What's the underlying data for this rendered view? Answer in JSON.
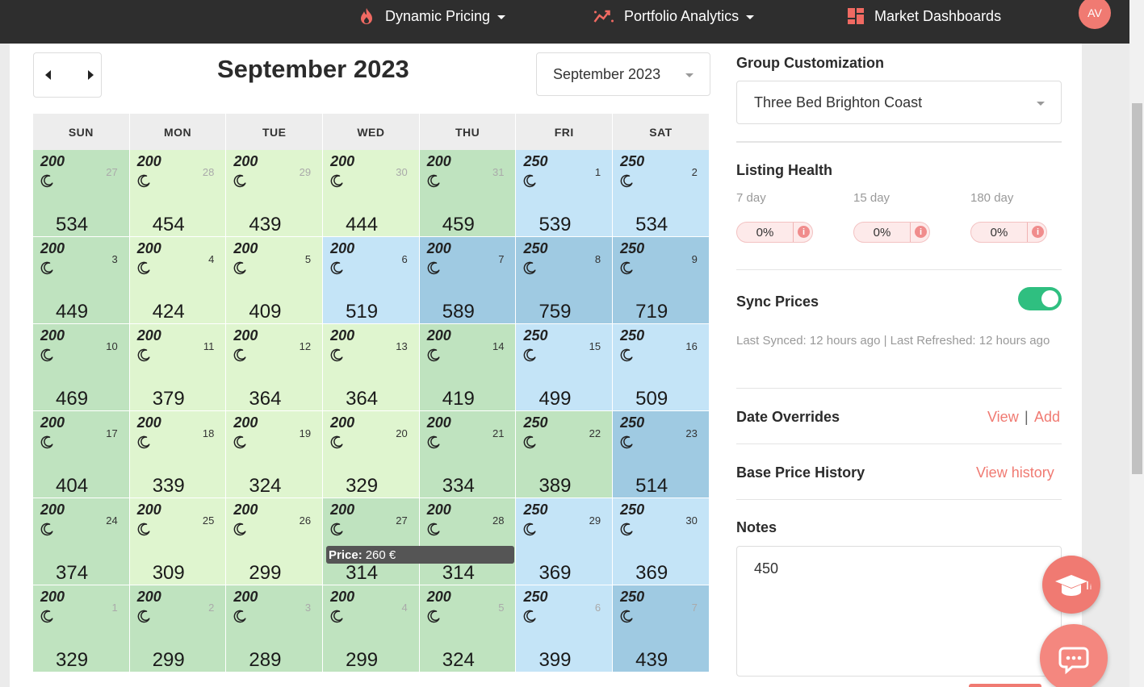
{
  "nav": {
    "items": [
      {
        "label": "Dynamic Pricing",
        "icon": "flame-icon",
        "dropdown": true
      },
      {
        "label": "Portfolio Analytics",
        "icon": "trend-chart-icon",
        "dropdown": true
      },
      {
        "label": "Market Dashboards",
        "icon": "dashboard-grid-icon",
        "dropdown": false
      }
    ],
    "avatar": "AV"
  },
  "calendar": {
    "title": "September 2023",
    "month_select": "September 2023",
    "days_of_week": [
      "SUN",
      "MON",
      "TUE",
      "WED",
      "THU",
      "FRI",
      "SAT"
    ],
    "weeks": [
      [
        {
          "day": "27",
          "min": "200",
          "price": "534",
          "color": "#bfe3bf",
          "dim": true
        },
        {
          "day": "28",
          "min": "200",
          "price": "454",
          "color": "#dff5cf",
          "dim": true
        },
        {
          "day": "29",
          "min": "200",
          "price": "439",
          "color": "#dff5cf",
          "dim": true
        },
        {
          "day": "30",
          "min": "200",
          "price": "444",
          "color": "#dff5cf",
          "dim": true
        },
        {
          "day": "31",
          "min": "200",
          "price": "459",
          "color": "#bfe3bf",
          "dim": true
        },
        {
          "day": "1",
          "min": "250",
          "price": "539",
          "color": "#c4e4f7",
          "dim": false
        },
        {
          "day": "2",
          "min": "250",
          "price": "534",
          "color": "#c4e4f7",
          "dim": false
        }
      ],
      [
        {
          "day": "3",
          "min": "200",
          "price": "449",
          "color": "#bfe3bf",
          "dim": false
        },
        {
          "day": "4",
          "min": "200",
          "price": "424",
          "color": "#dff5cf",
          "dim": false
        },
        {
          "day": "5",
          "min": "200",
          "price": "409",
          "color": "#dff5cf",
          "dim": false
        },
        {
          "day": "6",
          "min": "200",
          "price": "519",
          "color": "#c4e4f7",
          "dim": false
        },
        {
          "day": "7",
          "min": "200",
          "price": "589",
          "color": "#9fcae2",
          "dim": false
        },
        {
          "day": "8",
          "min": "250",
          "price": "759",
          "color": "#9fcae2",
          "dim": false
        },
        {
          "day": "9",
          "min": "250",
          "price": "719",
          "color": "#9fcae2",
          "dim": false
        }
      ],
      [
        {
          "day": "10",
          "min": "200",
          "price": "469",
          "color": "#bfe3bf",
          "dim": false
        },
        {
          "day": "11",
          "min": "200",
          "price": "379",
          "color": "#dff5cf",
          "dim": false
        },
        {
          "day": "12",
          "min": "200",
          "price": "364",
          "color": "#dff5cf",
          "dim": false
        },
        {
          "day": "13",
          "min": "200",
          "price": "364",
          "color": "#dff5cf",
          "dim": false
        },
        {
          "day": "14",
          "min": "200",
          "price": "419",
          "color": "#bfe3bf",
          "dim": false
        },
        {
          "day": "15",
          "min": "250",
          "price": "499",
          "color": "#c4e4f7",
          "dim": false
        },
        {
          "day": "16",
          "min": "250",
          "price": "509",
          "color": "#c4e4f7",
          "dim": false
        }
      ],
      [
        {
          "day": "17",
          "min": "200",
          "price": "404",
          "color": "#bfe3bf",
          "dim": false
        },
        {
          "day": "18",
          "min": "200",
          "price": "339",
          "color": "#dff5cf",
          "dim": false
        },
        {
          "day": "19",
          "min": "200",
          "price": "324",
          "color": "#dff5cf",
          "dim": false
        },
        {
          "day": "20",
          "min": "200",
          "price": "329",
          "color": "#dff5cf",
          "dim": false
        },
        {
          "day": "21",
          "min": "200",
          "price": "334",
          "color": "#bfe3bf",
          "dim": false
        },
        {
          "day": "22",
          "min": "250",
          "price": "389",
          "color": "#bfe3bf",
          "dim": false
        },
        {
          "day": "23",
          "min": "250",
          "price": "514",
          "color": "#9fcae2",
          "dim": false
        }
      ],
      [
        {
          "day": "24",
          "min": "200",
          "price": "374",
          "color": "#bfe3bf",
          "dim": false
        },
        {
          "day": "25",
          "min": "200",
          "price": "309",
          "color": "#dff5cf",
          "dim": false
        },
        {
          "day": "26",
          "min": "200",
          "price": "299",
          "color": "#dff5cf",
          "dim": false
        },
        {
          "day": "27",
          "min": "200",
          "price": "314",
          "color": "#bfe3bf",
          "dim": false
        },
        {
          "day": "28",
          "min": "200",
          "price": "314",
          "color": "#bfe3bf",
          "dim": false
        },
        {
          "day": "29",
          "min": "250",
          "price": "369",
          "color": "#c4e4f7",
          "dim": false
        },
        {
          "day": "30",
          "min": "250",
          "price": "369",
          "color": "#c4e4f7",
          "dim": false
        }
      ],
      [
        {
          "day": "1",
          "min": "200",
          "price": "329",
          "color": "#bfe3bf",
          "dim": true
        },
        {
          "day": "2",
          "min": "200",
          "price": "299",
          "color": "#bfe3bf",
          "dim": true
        },
        {
          "day": "3",
          "min": "200",
          "price": "289",
          "color": "#bfe3bf",
          "dim": true
        },
        {
          "day": "4",
          "min": "200",
          "price": "299",
          "color": "#bfe3bf",
          "dim": true
        },
        {
          "day": "5",
          "min": "200",
          "price": "324",
          "color": "#bfe3bf",
          "dim": true
        },
        {
          "day": "6",
          "min": "250",
          "price": "399",
          "color": "#c4e4f7",
          "dim": true
        },
        {
          "day": "7",
          "min": "250",
          "price": "439",
          "color": "#9fcae2",
          "dim": true
        }
      ]
    ],
    "tooltip": {
      "label": "Price:",
      "value": "260 €"
    }
  },
  "sidebar": {
    "group_title": "Group Customization",
    "group_select": "Three Bed Brighton Coast",
    "health_title": "Listing Health",
    "health": [
      {
        "label": "7 day",
        "value": "0%"
      },
      {
        "label": "15 day",
        "value": "0%"
      },
      {
        "label": "180 day",
        "value": "0%"
      }
    ],
    "sync_title": "Sync Prices",
    "sync_enabled": true,
    "sync_info": "Last Synced: 12 hours ago | Last Refreshed: 12 hours ago",
    "overrides_title": "Date Overrides",
    "overrides_view": "View",
    "overrides_sep": "|",
    "overrides_add": "Add",
    "history_title": "Base Price History",
    "history_link": "View history",
    "notes_title": "Notes",
    "notes_value": "450"
  },
  "colors": {
    "accent": "#f07a72",
    "toggle_on": "#2fbf80",
    "green_dark": "#bfe3bf",
    "green_light": "#dff5cf",
    "blue_light": "#c4e4f7",
    "blue_dark": "#9fcae2"
  }
}
